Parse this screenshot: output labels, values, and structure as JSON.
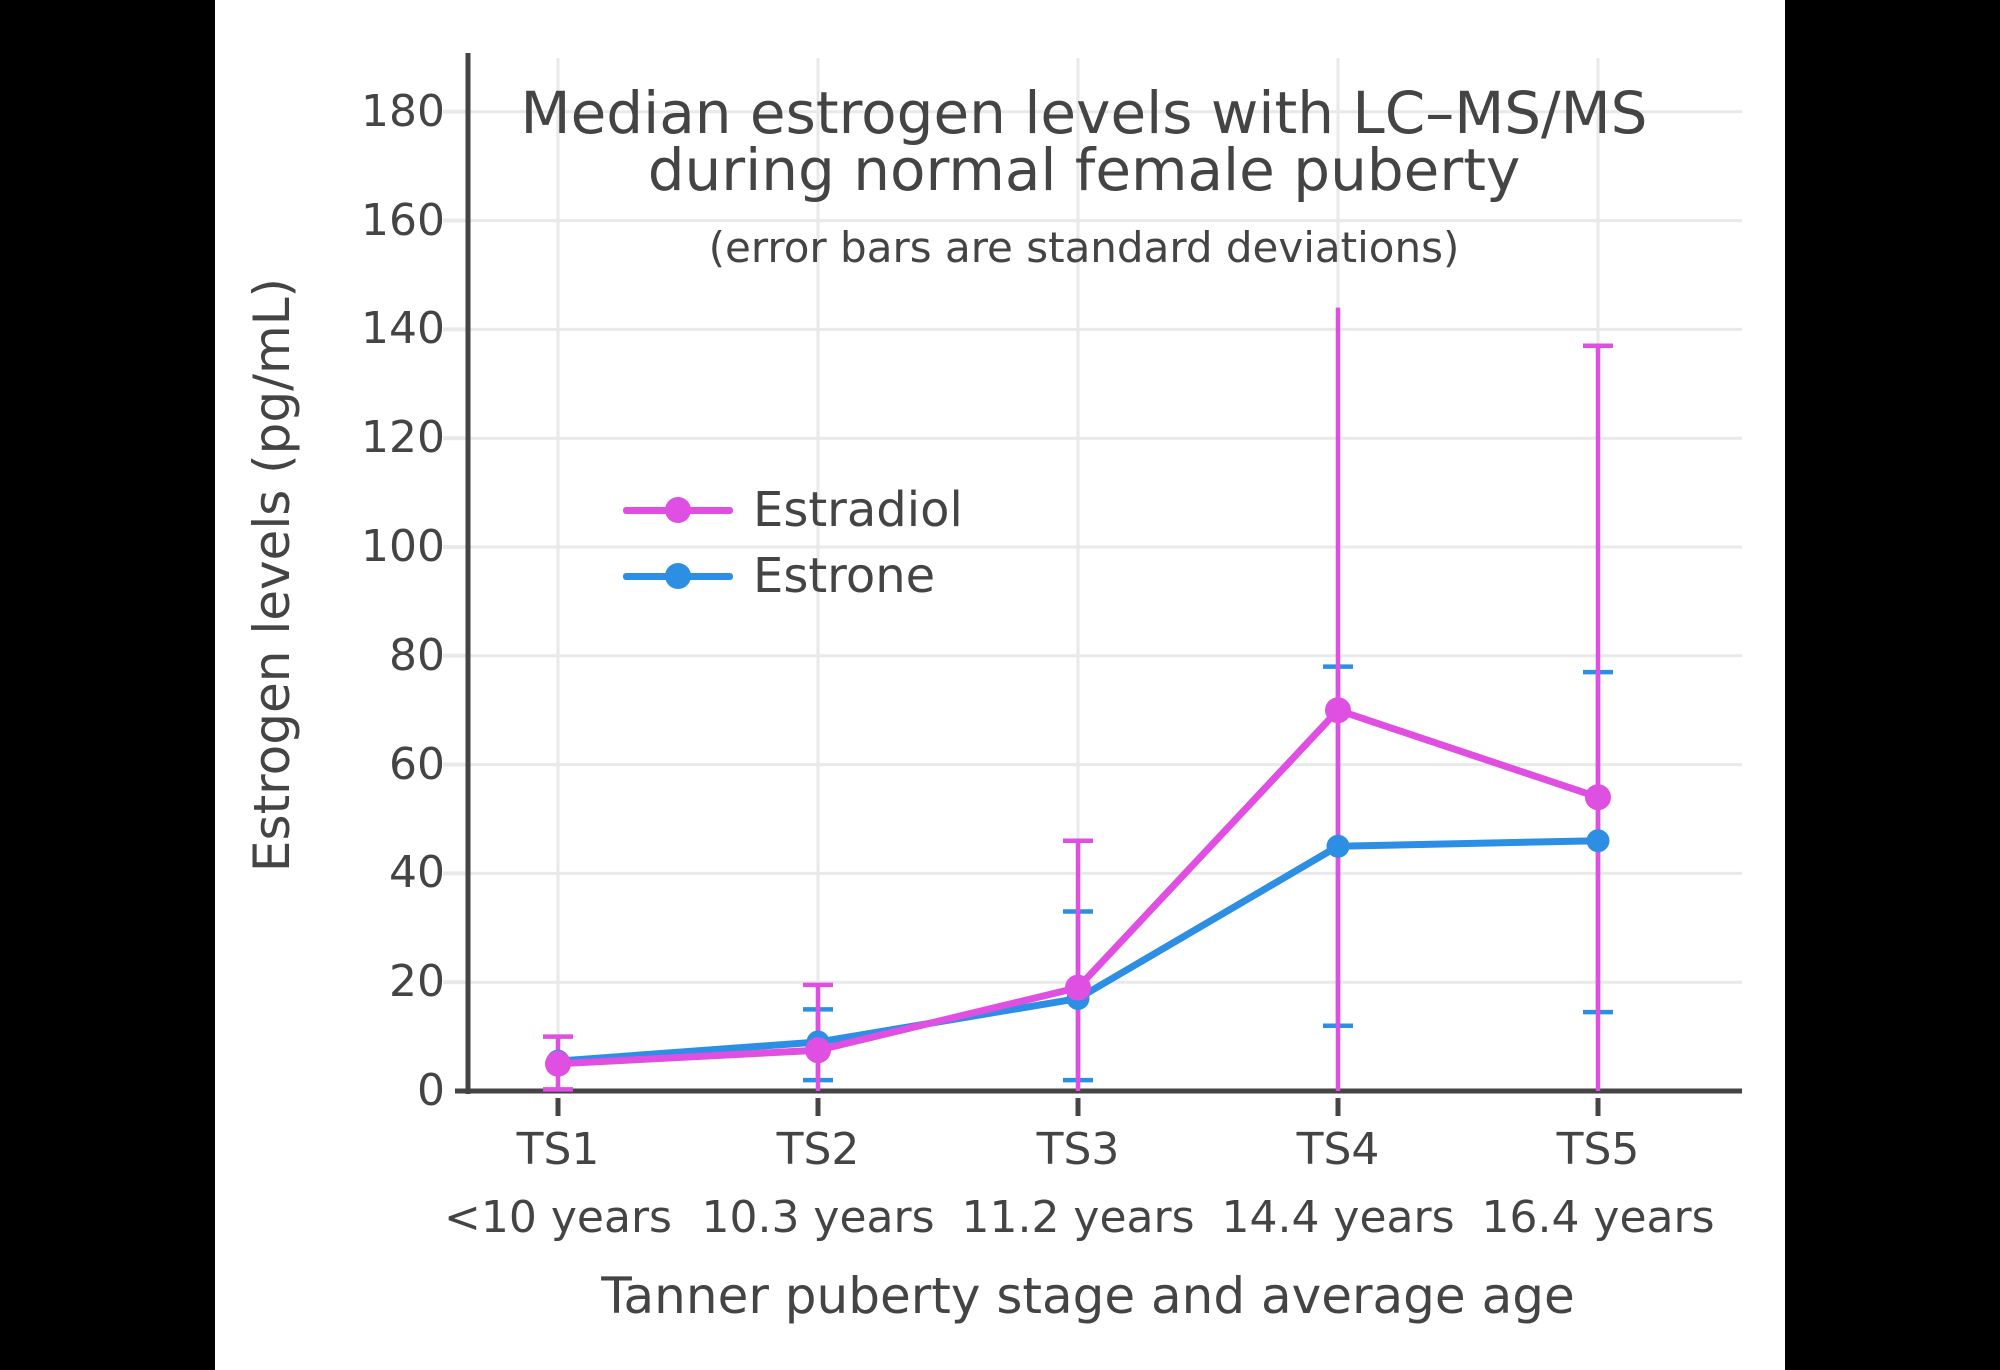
{
  "figure": {
    "background_color": "#000000",
    "paper_color": "#FFFFFF",
    "text_color": "#444444",
    "grid_color": "#E9E9E9",
    "axis_color": "#444444"
  },
  "chart_data": {
    "type": "line",
    "title": "Median estrogen levels with LC–MS/MS during normal female puberty",
    "title_lines": [
      "Median estrogen levels with LC–MS/MS",
      "during normal female puberty"
    ],
    "subtitle": "(error bars are standard deviations)",
    "xlabel": "Tanner puberty stage and average age",
    "ylabel": "Estrogen levels (pg/mL)",
    "categories": [
      "TS1",
      "TS2",
      "TS3",
      "TS4",
      "TS5"
    ],
    "category_ages": [
      "<10 years",
      "10.3 years",
      "11.2 years",
      "14.4 years",
      "16.4 years"
    ],
    "ylim": [
      0,
      190
    ],
    "yticks": [
      0,
      20,
      40,
      60,
      80,
      100,
      120,
      140,
      160,
      180
    ],
    "grid": true,
    "legend_position": "upper-left-inside",
    "error_bar_meaning": "standard deviations",
    "series": [
      {
        "name": "Estradiol",
        "color": "#DF4FE2",
        "values": [
          5,
          7.5,
          19,
          70,
          54
        ],
        "err_lo": [
          0.3,
          0,
          0,
          0,
          0
        ],
        "err_hi": [
          10,
          19.5,
          46,
          144,
          137
        ],
        "cap_lo": [
          true,
          false,
          false,
          false,
          false
        ],
        "cap_hi": [
          true,
          true,
          true,
          false,
          true
        ],
        "marker_radius": 13
      },
      {
        "name": "Estrone",
        "color": "#2D8FE4",
        "values": [
          5.5,
          9,
          17,
          45,
          46
        ],
        "err_lo": [
          null,
          2,
          2,
          12,
          14.5
        ],
        "err_hi": [
          null,
          15,
          33,
          78,
          77
        ],
        "cap_lo": [
          false,
          true,
          true,
          true,
          true
        ],
        "cap_hi": [
          false,
          true,
          true,
          true,
          true
        ],
        "marker_radius": 11.5
      }
    ]
  }
}
